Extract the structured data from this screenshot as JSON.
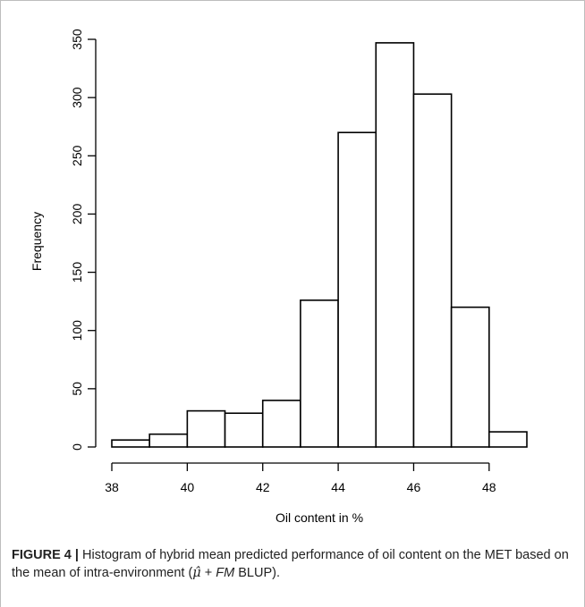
{
  "chart_data": {
    "type": "bar",
    "subtype": "histogram",
    "bins": [
      {
        "start": 38,
        "end": 39,
        "value": 6
      },
      {
        "start": 39,
        "end": 40,
        "value": 11
      },
      {
        "start": 40,
        "end": 41,
        "value": 31
      },
      {
        "start": 41,
        "end": 42,
        "value": 29
      },
      {
        "start": 42,
        "end": 43,
        "value": 40
      },
      {
        "start": 43,
        "end": 44,
        "value": 126
      },
      {
        "start": 44,
        "end": 45,
        "value": 270
      },
      {
        "start": 45,
        "end": 46,
        "value": 347
      },
      {
        "start": 46,
        "end": 47,
        "value": 303
      },
      {
        "start": 47,
        "end": 48,
        "value": 120
      },
      {
        "start": 48,
        "end": 49,
        "value": 13
      }
    ],
    "xlabel": "Oil content in %",
    "ylabel": "Frequency",
    "xticks": [
      38,
      40,
      42,
      44,
      46,
      48
    ],
    "yticks": [
      0,
      50,
      100,
      150,
      200,
      250,
      300,
      350
    ],
    "xlim": [
      38,
      49
    ],
    "ylim": [
      0,
      350
    ],
    "grid": false,
    "bar_fill": "#ffffff",
    "bar_stroke": "#000000"
  },
  "caption": {
    "label": "FIGURE 4 |",
    "text_before": " Histogram of hybrid mean predicted performance of oil content on the MET based on the mean of intra-environment (",
    "mu_symbol": "μ̂",
    "plus": " + ",
    "fm": "FM",
    "text_after": " BLUP)."
  }
}
